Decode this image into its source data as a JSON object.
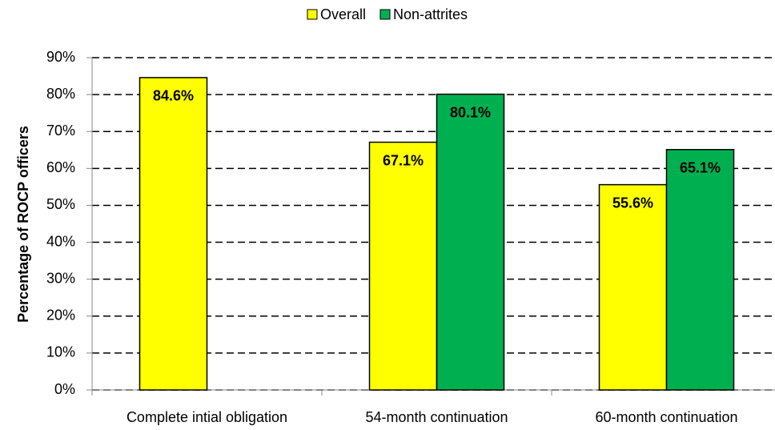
{
  "chart_data": {
    "type": "bar",
    "y_label": "Percentage of ROCP officers",
    "categories": [
      "Complete intial obligation",
      "54-month continuation",
      "60-month continuation"
    ],
    "series": [
      {
        "name": "Overall",
        "color": "#ffff00",
        "values": [
          84.6,
          67.1,
          55.6
        ],
        "value_labels": [
          "84.6%",
          "67.1%",
          "55.6%"
        ]
      },
      {
        "name": "Non-attrites",
        "color": "#00b050",
        "values": [
          null,
          80.1,
          65.1
        ],
        "value_labels": [
          null,
          "80.1%",
          "65.1%"
        ]
      }
    ],
    "ylim": [
      0,
      90
    ],
    "yticks": [
      {
        "value": 0,
        "label": "0%"
      },
      {
        "value": 10,
        "label": "10%"
      },
      {
        "value": 20,
        "label": "20%"
      },
      {
        "value": 30,
        "label": "30%"
      },
      {
        "value": 40,
        "label": "40%"
      },
      {
        "value": 50,
        "label": "50%"
      },
      {
        "value": 60,
        "label": "60%"
      },
      {
        "value": 70,
        "label": "70%"
      },
      {
        "value": 80,
        "label": "80%"
      },
      {
        "value": 90,
        "label": "90%"
      }
    ],
    "grid": true,
    "legend": "top"
  }
}
